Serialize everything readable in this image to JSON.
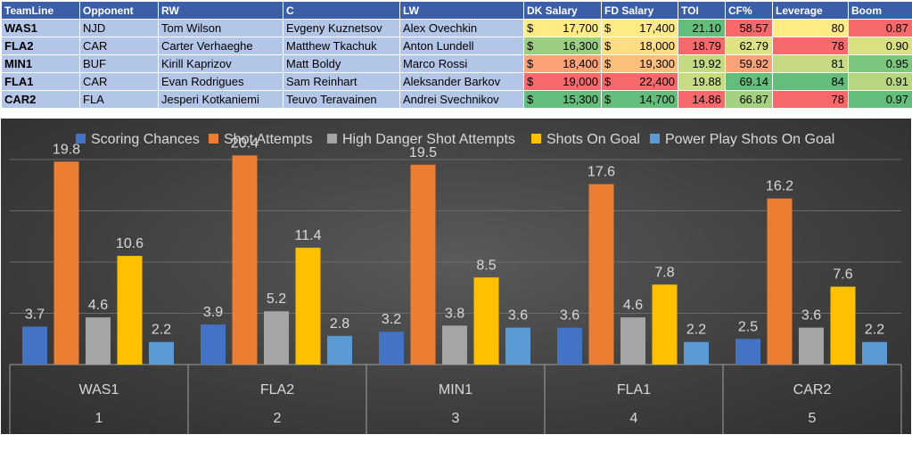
{
  "table": {
    "headers": [
      "TeamLine",
      "Opponent",
      "RW",
      "C",
      "LW",
      "DK Salary",
      "FD Salary",
      "TOI",
      "CF%",
      "Leverage",
      "Boom"
    ],
    "currency_symbol": "$",
    "rows": [
      {
        "teamline": "WAS1",
        "opponent": "NJD",
        "rw": "Tom Wilson",
        "c": "Evgeny Kuznetsov",
        "lw": "Alex Ovechkin",
        "dk": "17,700",
        "fd": "17,400",
        "toi": "21.10",
        "cf": "58.57",
        "leverage": "80",
        "boom": "0.87",
        "colors": {
          "dk": "#ffeb84",
          "fd": "#ffeb84",
          "toi": "#63be7b",
          "cf": "#f8696b",
          "leverage": "#ffeb84",
          "boom": "#f8696b"
        }
      },
      {
        "teamline": "FLA2",
        "opponent": "CAR",
        "rw": "Carter Verhaeghe",
        "c": "Matthew Tkachuk",
        "lw": "Anton Lundell",
        "dk": "16,300",
        "fd": "18,000",
        "toi": "18.79",
        "cf": "62.79",
        "leverage": "78",
        "boom": "0.90",
        "colors": {
          "dk": "#9bcf7f",
          "fd": "#ffdd82",
          "toi": "#f8696b",
          "cf": "#dfe283",
          "leverage": "#f8696b",
          "boom": "#d9e082"
        }
      },
      {
        "teamline": "MIN1",
        "opponent": "BUF",
        "rw": "Kirill Kaprizov",
        "c": "Matt Boldy",
        "lw": "Marco Rossi",
        "dk": "18,400",
        "fd": "19,300",
        "toi": "19.92",
        "cf": "59.92",
        "leverage": "81",
        "boom": "0.95",
        "colors": {
          "dk": "#fba276",
          "fd": "#fcbf7b",
          "toi": "#c4da81",
          "cf": "#fba276",
          "leverage": "#c5da81",
          "boom": "#7cc77d"
        }
      },
      {
        "teamline": "FLA1",
        "opponent": "CAR",
        "rw": "Evan Rodrigues",
        "c": "Sam Reinhart",
        "lw": "Aleksander Barkov",
        "dk": "19,000",
        "fd": "22,400",
        "toi": "19.88",
        "cf": "69.14",
        "leverage": "84",
        "boom": "0.91",
        "colors": {
          "dk": "#f8696b",
          "fd": "#f8696b",
          "toi": "#c7db81",
          "cf": "#63be7b",
          "leverage": "#63be7b",
          "boom": "#b8d680"
        }
      },
      {
        "teamline": "CAR2",
        "opponent": "FLA",
        "rw": "Jesperi Kotkaniemi",
        "c": "Teuvo Teravainen",
        "lw": "Andrei Svechnikov",
        "dk": "15,300",
        "fd": "14,700",
        "toi": "14.86",
        "cf": "66.87",
        "leverage": "78",
        "boom": "0.97",
        "colors": {
          "dk": "#63be7b",
          "fd": "#63be7b",
          "toi": "#f8696b",
          "cf": "#a3d17f",
          "leverage": "#f8696b",
          "boom": "#63be7b"
        }
      }
    ]
  },
  "chart_data": {
    "type": "bar",
    "categories": [
      "WAS1",
      "FLA2",
      "MIN1",
      "FLA1",
      "CAR2"
    ],
    "category_numbers": [
      "1",
      "2",
      "3",
      "4",
      "5"
    ],
    "series": [
      {
        "name": "Scoring Chances",
        "color": "#4472c4",
        "values": [
          3.7,
          3.9,
          3.2,
          3.6,
          2.5
        ]
      },
      {
        "name": "Shot Attempts",
        "color": "#ed7d31",
        "values": [
          19.8,
          20.4,
          19.5,
          17.6,
          16.2
        ]
      },
      {
        "name": "High Danger Shot Attempts",
        "color": "#a5a5a5",
        "values": [
          4.6,
          5.2,
          3.8,
          4.6,
          3.6
        ]
      },
      {
        "name": "Shots On Goal",
        "color": "#ffc000",
        "values": [
          10.6,
          11.4,
          8.5,
          7.8,
          7.6
        ]
      },
      {
        "name": "Power Play Shots On Goal",
        "color": "#5b9bd5",
        "values": [
          2.2,
          2.8,
          3.6,
          2.2,
          2.2
        ]
      }
    ],
    "ylim": [
      0,
      20
    ],
    "grid": true,
    "legend_position": "top"
  }
}
